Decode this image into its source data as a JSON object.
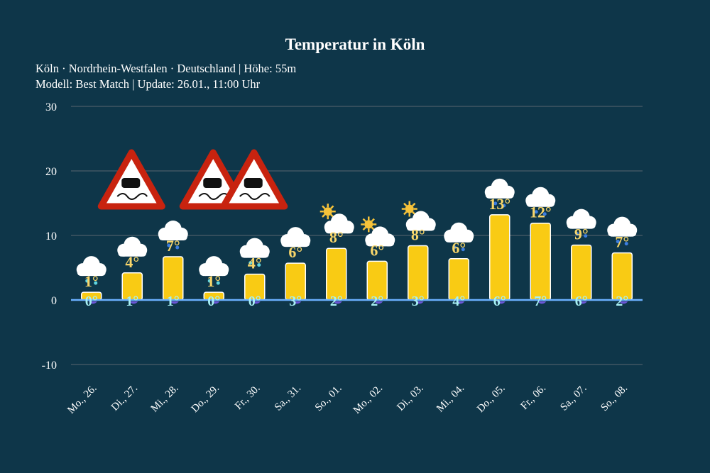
{
  "header": {
    "title": "Temperatur in Köln",
    "location_line": "Köln · Nordrhein-Westfalen · Deutschland | Höhe: 55m",
    "model_line": "Modell: Best Match | Update: 26.01., 11:00 Uhr"
  },
  "chart_data": {
    "type": "bar",
    "title": "Temperatur in Köln",
    "xlabel": "",
    "ylabel": "",
    "ylim": [
      -12,
      30
    ],
    "yticks": [
      30,
      20,
      10,
      0,
      -10
    ],
    "grid": true,
    "categories": [
      "Mo., 26.",
      "Di., 27.",
      "Mi., 28.",
      "Do., 29.",
      "Fr., 30.",
      "Sa., 31.",
      "So., 01.",
      "Mo., 02.",
      "Di., 03.",
      "Mi., 04.",
      "Do., 05.",
      "Fr., 06.",
      "Sa., 07.",
      "So., 08."
    ],
    "values": [
      1.2,
      4.2,
      6.7,
      1.2,
      4.0,
      5.7,
      8.0,
      6.0,
      8.4,
      6.4,
      13.2,
      11.9,
      8.5,
      7.3
    ],
    "max_labels": [
      "1°",
      "4°",
      "7°",
      "1°",
      "4°",
      "6°",
      "8°",
      "6°",
      "8°",
      "6°",
      "13°",
      "12°",
      "9°",
      "7°"
    ],
    "min_labels": [
      "0°",
      "1°",
      "1°",
      "0°",
      "0°",
      "3°",
      "2°",
      "2°",
      "3°",
      "4°",
      "6°",
      "7°",
      "6°",
      "2°"
    ],
    "weather_icons": [
      "cloud-sleet",
      "cloud",
      "cloud-rain",
      "cloud-sleet",
      "cloud-sleet",
      "cloud",
      "sun-cloud",
      "sun-cloud",
      "sun-cloud",
      "cloud-rain",
      "cloud-rain",
      "cloud-rain",
      "cloud-rain",
      "cloud-rain"
    ],
    "warnings": [
      false,
      true,
      false,
      true,
      true,
      false,
      false,
      false,
      false,
      false,
      false,
      false,
      false,
      false
    ],
    "colors": {
      "bar": "#f9cb14",
      "zero_line": "#6ab0ff",
      "grid": "#5b6670",
      "background": "#0e3649"
    }
  }
}
